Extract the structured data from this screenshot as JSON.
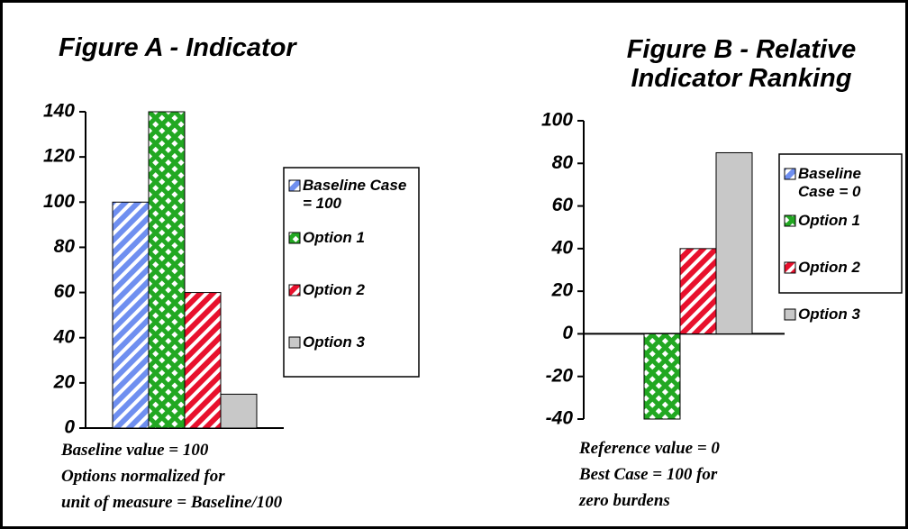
{
  "chart_data": [
    {
      "type": "bar",
      "title": "Figure A - Indicator",
      "series": [
        {
          "name": "Baseline Case = 100",
          "color": "#6f8ff0",
          "pattern": "diagonal",
          "values": [
            100
          ]
        },
        {
          "name": "Option 1",
          "color": "#22a822",
          "pattern": "cross",
          "values": [
            140
          ]
        },
        {
          "name": "Option 2",
          "color": "#e8112d",
          "pattern": "diagonal",
          "values": [
            60
          ]
        },
        {
          "name": "Option 3",
          "color": "#c8c8c8",
          "pattern": "solid",
          "values": [
            15
          ]
        }
      ],
      "ylim": [
        0,
        140
      ],
      "yticks": [
        0,
        20,
        40,
        60,
        80,
        100,
        120,
        140
      ],
      "legend": "right",
      "annotations": [
        "Baseline value = 100",
        "Options normalized for",
        "unit of measure = Baseline/100"
      ]
    },
    {
      "type": "bar",
      "title": "Figure B - Relative Indicator Ranking",
      "series": [
        {
          "name": "Baseline Case = 0",
          "color": "#6f8ff0",
          "pattern": "diagonal",
          "values": [
            0
          ]
        },
        {
          "name": "Option 1",
          "color": "#22a822",
          "pattern": "cross",
          "values": [
            -40
          ]
        },
        {
          "name": "Option 2",
          "color": "#e8112d",
          "pattern": "diagonal",
          "values": [
            40
          ]
        },
        {
          "name": "Option 3",
          "color": "#c8c8c8",
          "pattern": "solid",
          "values": [
            85
          ]
        }
      ],
      "ylim": [
        -40,
        100
      ],
      "yticks": [
        -40,
        -20,
        0,
        20,
        40,
        60,
        80,
        100
      ],
      "legend": "right",
      "annotations": [
        "Reference value = 0",
        "Best Case = 100 for",
        "zero burdens"
      ]
    }
  ]
}
